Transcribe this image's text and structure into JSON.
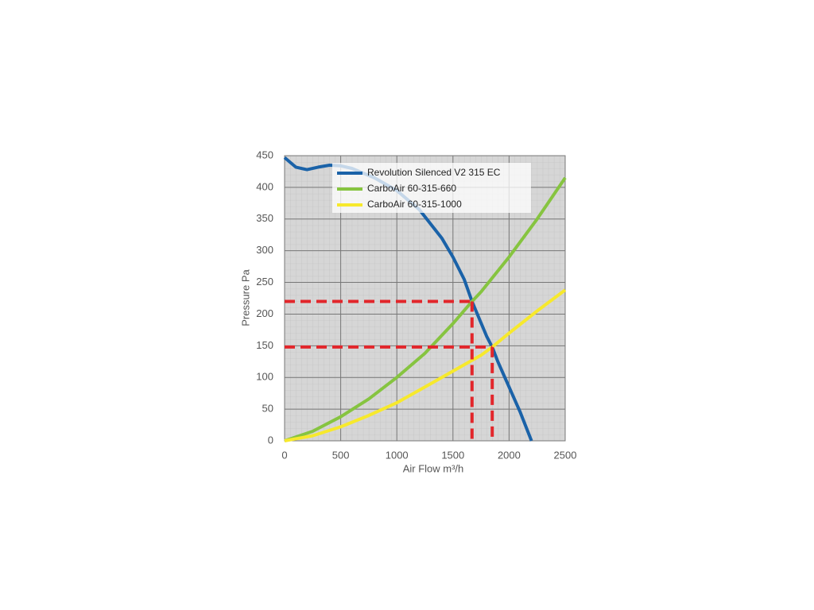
{
  "chart_data": {
    "type": "line",
    "x_label": "Air Flow m³/h",
    "y_label": "Pressure Pa",
    "xlim": [
      0,
      2500
    ],
    "ylim": [
      0,
      450
    ],
    "xticks": [
      0,
      500,
      1000,
      1500,
      2000,
      2500
    ],
    "yticks": [
      0,
      50,
      100,
      150,
      200,
      250,
      300,
      350,
      400,
      450
    ],
    "grid": true,
    "legend": "top",
    "series": [
      {
        "name": "Revolution Silenced V2 315 EC",
        "color": "#1a62a8",
        "x": [
          0,
          100,
          200,
          300,
          400,
          500,
          600,
          800,
          1000,
          1200,
          1400,
          1500,
          1600,
          1670,
          1800,
          1850,
          1900,
          2000,
          2100,
          2200
        ],
        "values": [
          447,
          432,
          428,
          432,
          435,
          434,
          430,
          415,
          395,
          365,
          320,
          290,
          255,
          220,
          165,
          148,
          125,
          85,
          45,
          0
        ]
      },
      {
        "name": "CarboAir 60-315-660",
        "color": "#86c440",
        "x": [
          0,
          250,
          500,
          750,
          1000,
          1250,
          1500,
          1670,
          1750,
          2000,
          2250,
          2500
        ],
        "values": [
          0,
          15,
          38,
          66,
          100,
          138,
          185,
          220,
          235,
          290,
          350,
          415
        ]
      },
      {
        "name": "CarboAir 60-315-1000",
        "color": "#f7e92c",
        "x": [
          0,
          250,
          500,
          750,
          1000,
          1250,
          1500,
          1750,
          1850,
          2000,
          2250,
          2500
        ],
        "values": [
          0,
          8,
          22,
          40,
          60,
          85,
          110,
          135,
          148,
          170,
          205,
          238
        ]
      }
    ],
    "reference_lines": [
      {
        "x": 1670,
        "y": 220,
        "color": "#e2262b"
      },
      {
        "x": 1850,
        "y": 148,
        "color": "#e2262b"
      }
    ]
  }
}
